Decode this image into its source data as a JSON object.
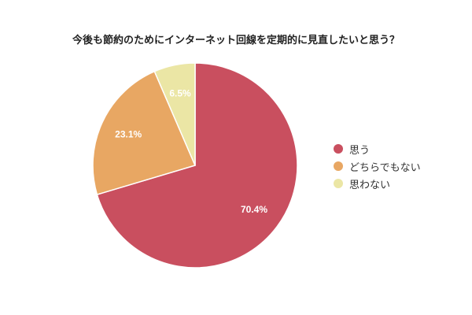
{
  "title": "今後も節約のためにインターネット回線を定期的に見直したいと思う？",
  "chart_data": {
    "type": "pie",
    "title": "今後も節約のためにインターネット回線を定期的に見直したいと思う？",
    "categories": [
      "思う",
      "どちらでもない",
      "思わない"
    ],
    "values": [
      70.4,
      23.1,
      6.5
    ],
    "labels": [
      "70.4%",
      "23.1%",
      "6.5%"
    ],
    "colors": [
      "#c94f5f",
      "#e8a763",
      "#ebe6a5"
    ],
    "start_angle": "12 o'clock, clockwise",
    "legend_position": "right"
  },
  "legend": [
    {
      "label": "思う",
      "color": "#c94f5f"
    },
    {
      "label": "どちらでもない",
      "color": "#e8a763"
    },
    {
      "label": "思わない",
      "color": "#ebe6a5"
    }
  ]
}
